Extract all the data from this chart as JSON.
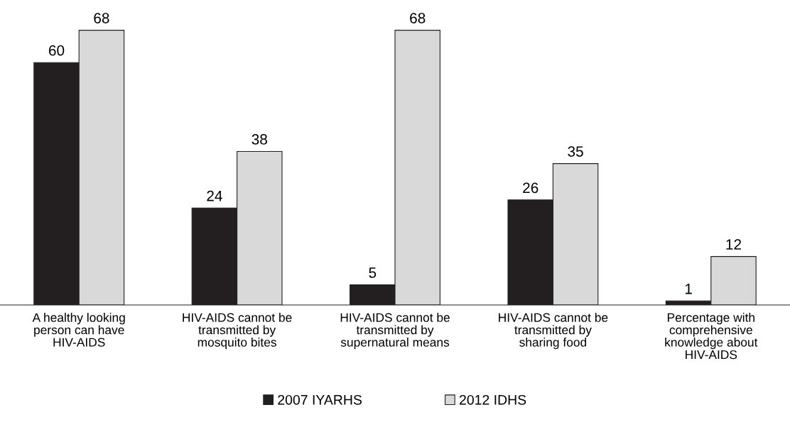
{
  "chart_data": {
    "type": "bar",
    "categories": [
      "A healthy looking\nperson can have\nHIV-AIDS",
      "HIV-AIDS cannot be\ntransmitted by\nmosquito bites",
      "HIV-AIDS cannot be\ntransmitted by\nsupernatural means",
      "HIV-AIDS cannot be\ntransmitted by\nsharing food",
      "Percentage with\ncomprehensive\nknowledge about\nHIV-AIDS"
    ],
    "series": [
      {
        "name": "2007 IYARHS",
        "color": "#231f20",
        "values": [
          60,
          24,
          5,
          26,
          1
        ]
      },
      {
        "name": "2012 IDHS",
        "color": "#d9d9d9",
        "values": [
          68,
          38,
          68,
          35,
          12
        ]
      }
    ],
    "data_labels": true,
    "legend": "bottom",
    "grid": false
  }
}
